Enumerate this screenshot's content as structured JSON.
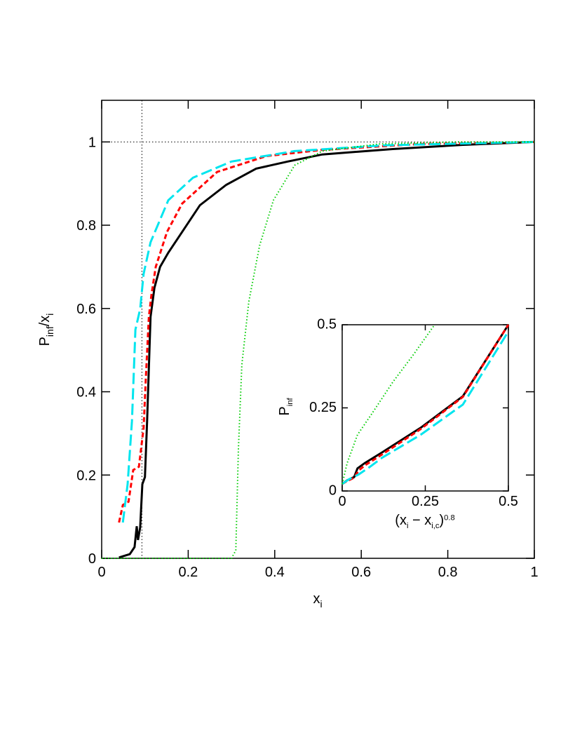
{
  "chart_data": [
    {
      "type": "line",
      "xlabel": [
        {
          "text": "x",
          "pos": "base"
        },
        {
          "text": "i",
          "pos": "sub"
        }
      ],
      "ylabel": [
        {
          "text": "P",
          "pos": "base"
        },
        {
          "text": "inf",
          "pos": "sub"
        },
        {
          "text": "/x",
          "pos": "base"
        },
        {
          "text": "i",
          "pos": "sub"
        }
      ],
      "xlim": [
        0,
        1
      ],
      "ylim": [
        0,
        1.1
      ],
      "xticks": [
        0,
        0.2,
        0.4,
        0.6,
        0.8,
        1
      ],
      "yticks": [
        0,
        0.2,
        0.4,
        0.6,
        0.8,
        1
      ],
      "hlines": [
        1
      ],
      "vlines": [
        0.093
      ],
      "series": [
        {
          "color": "#000000",
          "dash": "solid",
          "x": [
            0.04,
            0.065,
            0.076,
            0.081,
            0.084,
            0.089,
            0.094,
            0.1,
            0.105,
            0.113,
            0.122,
            0.135,
            0.154,
            0.227,
            0.288,
            0.357,
            0.43,
            0.51,
            0.673,
            0.835,
            1
          ],
          "values": [
            0.002,
            0.01,
            0.027,
            0.077,
            0.044,
            0.074,
            0.178,
            0.195,
            0.33,
            0.58,
            0.65,
            0.7,
            0.734,
            0.848,
            0.897,
            0.936,
            0.953,
            0.97,
            0.983,
            0.993,
            1
          ]
        },
        {
          "color": "#ff0000",
          "dash": "short",
          "x": [
            0.04,
            0.049,
            0.062,
            0.073,
            0.086,
            0.097,
            0.102,
            0.109,
            0.115,
            0.125,
            0.151,
            0.186,
            0.267,
            0.381,
            0.51,
            0.737,
            1
          ],
          "values": [
            0.086,
            0.128,
            0.136,
            0.212,
            0.22,
            0.313,
            0.43,
            0.58,
            0.633,
            0.7,
            0.784,
            0.852,
            0.928,
            0.966,
            0.981,
            0.995,
            1
          ]
        },
        {
          "color": "#00e5ee",
          "dash": "long",
          "x": [
            0.049,
            0.06,
            0.07,
            0.078,
            0.089,
            0.097,
            0.113,
            0.154,
            0.211,
            0.3,
            0.446,
            0.656,
            1
          ],
          "values": [
            0.086,
            0.178,
            0.33,
            0.549,
            0.599,
            0.683,
            0.759,
            0.86,
            0.914,
            0.953,
            0.978,
            0.992,
            1
          ]
        },
        {
          "color": "#00cc00",
          "dash": "dot",
          "x": [
            0,
            0.3,
            0.31,
            0.316,
            0.324,
            0.34,
            0.365,
            0.397,
            0.446,
            0.51,
            0.64,
            0.818,
            1
          ],
          "values": [
            0,
            0,
            0.019,
            0.263,
            0.465,
            0.616,
            0.751,
            0.86,
            0.944,
            0.978,
            0.995,
            1,
            1
          ]
        }
      ]
    },
    {
      "type": "line",
      "xlabel": [
        {
          "text": "(x",
          "pos": "base"
        },
        {
          "text": "i",
          "pos": "sub"
        },
        {
          "text": " − x",
          "pos": "base"
        },
        {
          "text": "i,c",
          "pos": "sub"
        },
        {
          "text": ")",
          "pos": "base"
        },
        {
          "text": "0.8",
          "pos": "sup"
        }
      ],
      "ylabel": [
        {
          "text": "P",
          "pos": "base"
        },
        {
          "text": "inf",
          "pos": "sub"
        }
      ],
      "xlim": [
        0,
        0.5
      ],
      "ylim": [
        0,
        0.5
      ],
      "xticks": [
        0,
        {
          "value": 0.25,
          "label": "0.25"
        },
        0.5
      ],
      "yticks": [
        0,
        {
          "value": 0.25,
          "label": "0.25"
        },
        0.5
      ],
      "series": [
        {
          "color": "#000000",
          "dash": "solid",
          "x": [
            0,
            0.015,
            0.036,
            0.046,
            0.068,
            0.12,
            0.236,
            0.363,
            0.5
          ],
          "values": [
            0.021,
            0.032,
            0.042,
            0.068,
            0.084,
            0.116,
            0.19,
            0.285,
            0.5
          ]
        },
        {
          "color": "#ff0000",
          "dash": "short",
          "x": [
            0,
            0.015,
            0.036,
            0.05,
            0.07,
            0.12,
            0.236,
            0.363,
            0.5
          ],
          "values": [
            0.021,
            0.03,
            0.04,
            0.062,
            0.078,
            0.11,
            0.186,
            0.283,
            0.5
          ]
        },
        {
          "color": "#00e5ee",
          "dash": "long",
          "x": [
            0,
            0.02,
            0.05,
            0.08,
            0.12,
            0.236,
            0.363,
            0.5
          ],
          "values": [
            0.021,
            0.035,
            0.05,
            0.07,
            0.1,
            0.169,
            0.26,
            0.48
          ]
        },
        {
          "color": "#00cc00",
          "dash": "dot",
          "x": [
            0,
            0.015,
            0.046,
            0.089,
            0.152,
            0.215,
            0.278
          ],
          "values": [
            0.021,
            0.084,
            0.169,
            0.232,
            0.327,
            0.411,
            0.5
          ]
        }
      ]
    }
  ]
}
